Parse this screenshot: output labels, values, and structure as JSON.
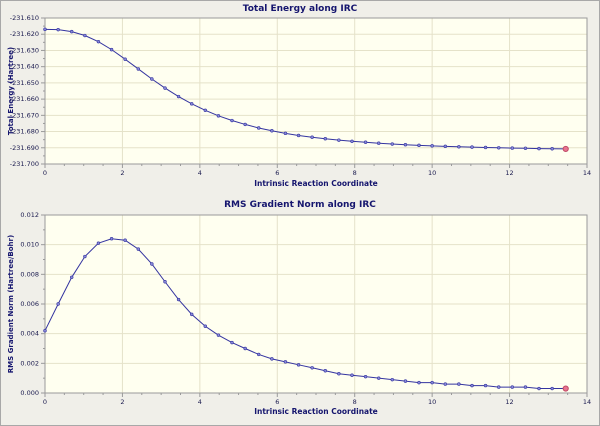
{
  "colors": {
    "window_bg": "#f0efe9",
    "window_border": "#a8a8a8",
    "plot_bg": "#fffff0",
    "grid": "#e5e2c9",
    "frame": "#9a9a9a",
    "axis_label": "#15156e",
    "tick_label": "#1a1a4e",
    "line": "#3434a0",
    "marker": "#8a8ad8",
    "highlight": "#e8738e",
    "highlight_stroke": "#c04a68"
  },
  "chart_data": [
    {
      "type": "line",
      "title": "Total Energy along IRC",
      "xlabel": "Intrinsic Reaction Coordinate",
      "ylabel": "Total Energy (Hartree)",
      "xlim": [
        0,
        14
      ],
      "ylim": [
        -231.7,
        -231.61
      ],
      "xticks": [
        0,
        2,
        4,
        6,
        8,
        10,
        12,
        14
      ],
      "yticks": [
        -231.7,
        -231.69,
        -231.68,
        -231.67,
        -231.66,
        -231.65,
        -231.64,
        -231.63,
        -231.62,
        -231.61
      ],
      "x_minor_step": 0.5,
      "y_minor_step": 0.005,
      "x_decimals": 0,
      "y_decimals": 3,
      "grid": true,
      "legend": "none",
      "highlight_last_point": true,
      "x": [
        0.0,
        0.34,
        0.69,
        1.03,
        1.38,
        1.72,
        2.07,
        2.41,
        2.76,
        3.1,
        3.45,
        3.79,
        4.14,
        4.48,
        4.83,
        5.17,
        5.52,
        5.86,
        6.21,
        6.55,
        6.9,
        7.24,
        7.59,
        7.93,
        8.28,
        8.62,
        8.97,
        9.31,
        9.66,
        10.0,
        10.34,
        10.69,
        11.03,
        11.38,
        11.72,
        12.07,
        12.41,
        12.76,
        13.1,
        13.45
      ],
      "y": [
        -231.617,
        -231.6172,
        -231.6184,
        -231.6208,
        -231.6246,
        -231.6295,
        -231.6354,
        -231.6414,
        -231.6476,
        -231.6532,
        -231.6584,
        -231.6629,
        -231.6669,
        -231.6703,
        -231.6732,
        -231.6756,
        -231.6778,
        -231.6795,
        -231.6811,
        -231.6824,
        -231.6835,
        -231.6844,
        -231.6853,
        -231.686,
        -231.6866,
        -231.6872,
        -231.6877,
        -231.6881,
        -231.6885,
        -231.6888,
        -231.6891,
        -231.6894,
        -231.6896,
        -231.6898,
        -231.69,
        -231.6902,
        -231.6903,
        -231.6905,
        -231.6906,
        -231.6907
      ]
    },
    {
      "type": "line",
      "title": "RMS Gradient Norm along IRC",
      "xlabel": "Intrinsic Reaction Coordinate",
      "ylabel": "RMS Gradient Norm (Hartree/Bohr)",
      "xlim": [
        0,
        14
      ],
      "ylim": [
        0.0,
        0.012
      ],
      "xticks": [
        0,
        2,
        4,
        6,
        8,
        10,
        12,
        14
      ],
      "yticks": [
        0.0,
        0.002,
        0.004,
        0.006,
        0.008,
        0.01,
        0.012
      ],
      "x_minor_step": 0.5,
      "y_minor_step": 0.001,
      "x_decimals": 0,
      "y_decimals": 3,
      "grid": true,
      "legend": "none",
      "highlight_last_point": true,
      "x": [
        0.0,
        0.34,
        0.69,
        1.03,
        1.38,
        1.72,
        2.07,
        2.41,
        2.76,
        3.1,
        3.45,
        3.79,
        4.14,
        4.48,
        4.83,
        5.17,
        5.52,
        5.86,
        6.21,
        6.55,
        6.9,
        7.24,
        7.59,
        7.93,
        8.28,
        8.62,
        8.97,
        9.31,
        9.66,
        10.0,
        10.34,
        10.69,
        11.03,
        11.38,
        11.72,
        12.07,
        12.41,
        12.76,
        13.1,
        13.45
      ],
      "y": [
        0.0042,
        0.006,
        0.0078,
        0.0092,
        0.0101,
        0.0104,
        0.0103,
        0.0097,
        0.0087,
        0.0075,
        0.0063,
        0.0053,
        0.0045,
        0.0039,
        0.0034,
        0.003,
        0.0026,
        0.0023,
        0.0021,
        0.0019,
        0.0017,
        0.0015,
        0.0013,
        0.0012,
        0.0011,
        0.001,
        0.0009,
        0.0008,
        0.0007,
        0.0007,
        0.0006,
        0.0006,
        0.0005,
        0.0005,
        0.0004,
        0.0004,
        0.0004,
        0.0003,
        0.0003,
        0.0003
      ]
    }
  ]
}
